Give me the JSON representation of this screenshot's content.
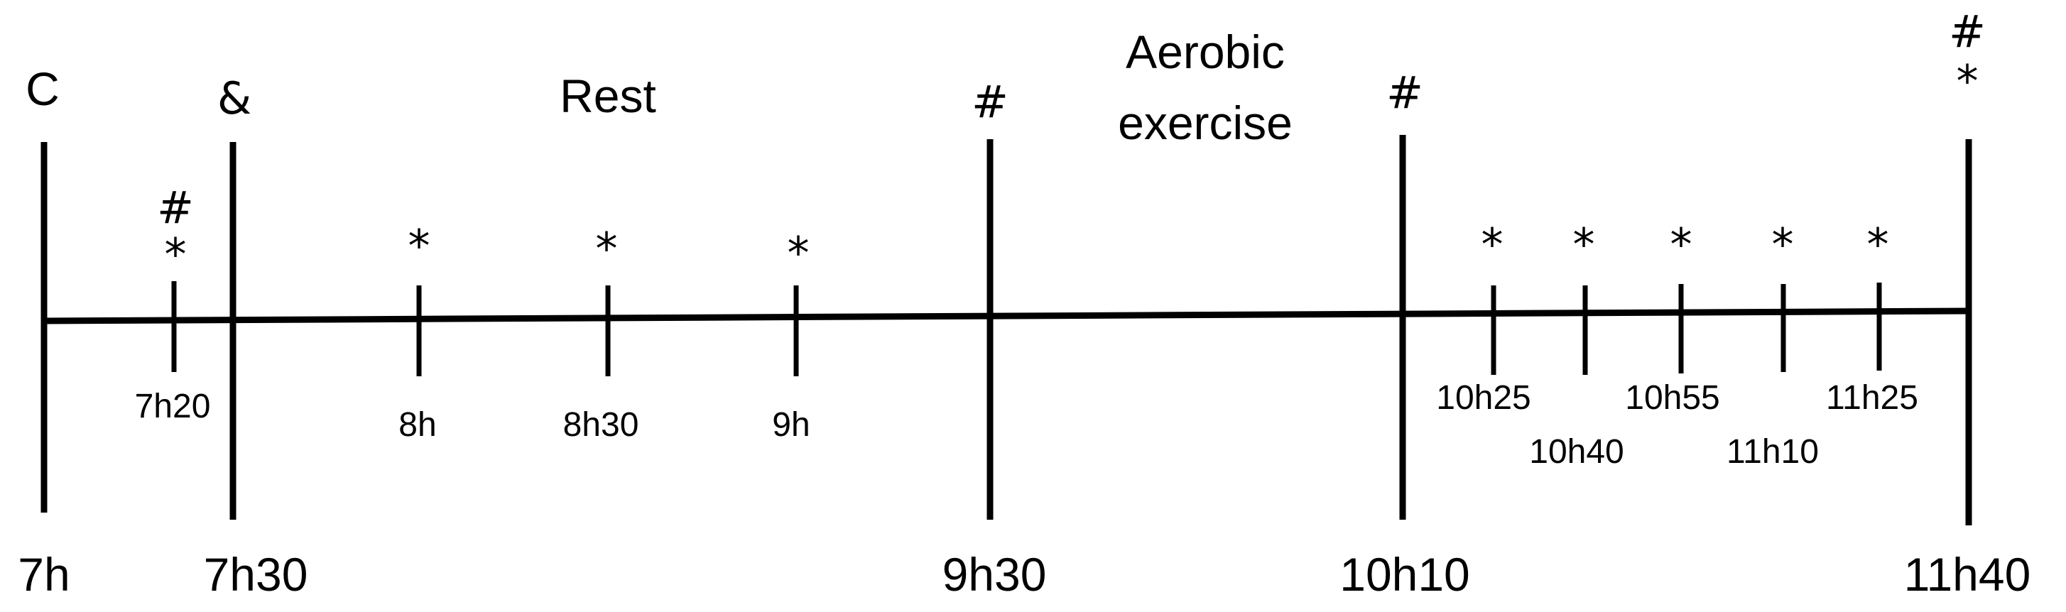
{
  "diagram": {
    "headings": {
      "condition": "C",
      "rest": "Rest",
      "aerobic_line1": "Aerobic",
      "aerobic_line2": "exercise"
    },
    "major_times": [
      {
        "id": "7h",
        "time": "7h",
        "marker": ""
      },
      {
        "id": "7h30",
        "time": "7h30",
        "marker": "&"
      },
      {
        "id": "9h30",
        "time": "9h30",
        "marker": "#"
      },
      {
        "id": "10h10",
        "time": "10h10",
        "marker": "#"
      },
      {
        "id": "11h40",
        "time": "11h40",
        "marker_top": "#",
        "marker_bottom": "*"
      }
    ],
    "minor_times": [
      {
        "id": "7h20",
        "time": "7h20",
        "marker_top": "#",
        "marker_bottom": "*"
      },
      {
        "id": "8h",
        "time": "8h",
        "marker": "*"
      },
      {
        "id": "8h30",
        "time": "8h30",
        "marker": "*"
      },
      {
        "id": "9h",
        "time": "9h",
        "marker": "*"
      },
      {
        "id": "10h25",
        "time": "10h25",
        "marker": "*"
      },
      {
        "id": "10h40",
        "time": "10h40",
        "marker": "*"
      },
      {
        "id": "10h55",
        "time": "10h55",
        "marker": "*"
      },
      {
        "id": "11h10",
        "time": "11h10",
        "marker": "*"
      },
      {
        "id": "11h25",
        "time": "11h25",
        "marker": "*"
      }
    ]
  }
}
